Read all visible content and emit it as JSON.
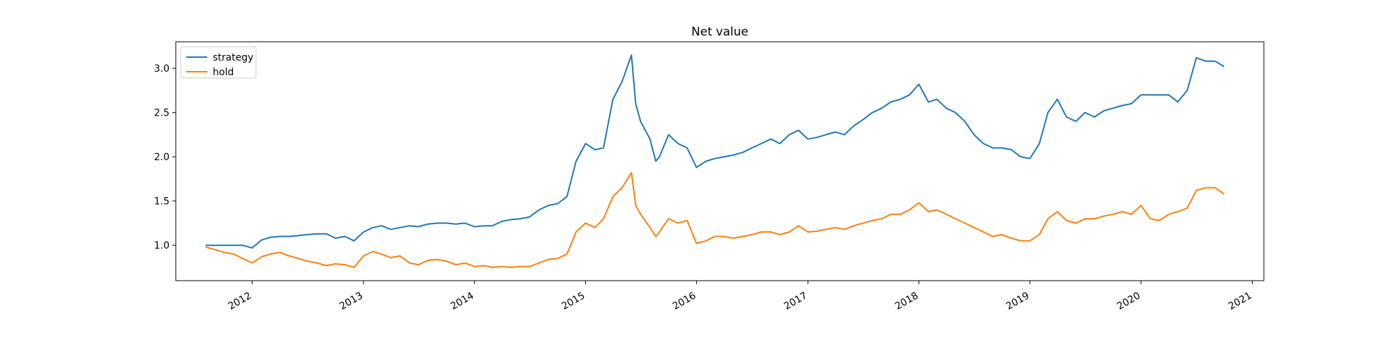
{
  "chart_data": {
    "type": "line",
    "title": "Net value",
    "xlabel": "",
    "ylabel": "",
    "xlim": [
      "2011-04-25",
      "2021-02-08"
    ],
    "ylim": [
      0.6,
      3.3
    ],
    "x_ticks": [
      "2012",
      "2013",
      "2014",
      "2015",
      "2016",
      "2017",
      "2018",
      "2019",
      "2020",
      "2021"
    ],
    "y_ticks": [
      "1.0",
      "1.5",
      "2.0",
      "2.5",
      "3.0"
    ],
    "legend_placement": "top-left",
    "grid": false,
    "colors": {
      "strategy": "#1f77b4",
      "hold": "#ff7f0e"
    },
    "series": [
      {
        "name": "strategy",
        "x": [
          "2011-08-01",
          "2011-09-01",
          "2011-10-01",
          "2011-11-01",
          "2011-12-01",
          "2012-01-01",
          "2012-02-01",
          "2012-03-01",
          "2012-04-01",
          "2012-05-01",
          "2012-06-01",
          "2012-07-01",
          "2012-08-01",
          "2012-09-01",
          "2012-10-01",
          "2012-11-01",
          "2012-12-01",
          "2013-01-01",
          "2013-02-01",
          "2013-03-01",
          "2013-04-01",
          "2013-05-01",
          "2013-06-01",
          "2013-07-01",
          "2013-08-01",
          "2013-09-01",
          "2013-10-01",
          "2013-11-01",
          "2013-12-01",
          "2014-01-01",
          "2014-02-01",
          "2014-03-01",
          "2014-04-01",
          "2014-05-01",
          "2014-06-01",
          "2014-07-01",
          "2014-08-01",
          "2014-09-01",
          "2014-10-01",
          "2014-11-01",
          "2014-12-01",
          "2015-01-01",
          "2015-02-01",
          "2015-03-01",
          "2015-04-01",
          "2015-05-01",
          "2015-06-01",
          "2015-06-15",
          "2015-07-01",
          "2015-08-01",
          "2015-08-20",
          "2015-09-01",
          "2015-10-01",
          "2015-11-01",
          "2015-12-01",
          "2016-01-01",
          "2016-02-01",
          "2016-03-01",
          "2016-04-01",
          "2016-05-01",
          "2016-06-01",
          "2016-07-01",
          "2016-08-01",
          "2016-09-01",
          "2016-10-01",
          "2016-11-01",
          "2016-12-01",
          "2017-01-01",
          "2017-02-01",
          "2017-03-01",
          "2017-04-01",
          "2017-05-01",
          "2017-06-01",
          "2017-07-01",
          "2017-08-01",
          "2017-09-01",
          "2017-10-01",
          "2017-11-01",
          "2017-12-01",
          "2018-01-01",
          "2018-02-01",
          "2018-03-01",
          "2018-04-01",
          "2018-05-01",
          "2018-06-01",
          "2018-07-01",
          "2018-08-01",
          "2018-09-01",
          "2018-10-01",
          "2018-11-01",
          "2018-12-01",
          "2019-01-01",
          "2019-02-01",
          "2019-03-01",
          "2019-04-01",
          "2019-05-01",
          "2019-06-01",
          "2019-07-01",
          "2019-08-01",
          "2019-09-01",
          "2019-10-01",
          "2019-11-01",
          "2019-12-01",
          "2020-01-01",
          "2020-02-01",
          "2020-03-01",
          "2020-04-01",
          "2020-05-01",
          "2020-06-01",
          "2020-07-01",
          "2020-08-01",
          "2020-09-01",
          "2020-09-30"
        ],
        "values": [
          1.0,
          1.0,
          1.0,
          1.0,
          1.0,
          0.97,
          1.06,
          1.09,
          1.1,
          1.1,
          1.11,
          1.12,
          1.13,
          1.13,
          1.08,
          1.1,
          1.05,
          1.15,
          1.2,
          1.22,
          1.18,
          1.2,
          1.22,
          1.21,
          1.24,
          1.25,
          1.25,
          1.24,
          1.25,
          1.21,
          1.22,
          1.22,
          1.27,
          1.29,
          1.3,
          1.32,
          1.4,
          1.45,
          1.47,
          1.55,
          1.95,
          2.15,
          2.08,
          2.1,
          2.65,
          2.85,
          3.15,
          2.6,
          2.4,
          2.2,
          1.95,
          2.0,
          2.25,
          2.15,
          2.1,
          1.88,
          1.95,
          1.98,
          2.0,
          2.02,
          2.05,
          2.1,
          2.15,
          2.2,
          2.15,
          2.25,
          2.3,
          2.2,
          2.22,
          2.25,
          2.28,
          2.25,
          2.35,
          2.42,
          2.5,
          2.55,
          2.62,
          2.65,
          2.7,
          2.82,
          2.62,
          2.65,
          2.55,
          2.5,
          2.4,
          2.25,
          2.15,
          2.1,
          2.1,
          2.08,
          2.0,
          1.98,
          2.15,
          2.5,
          2.65,
          2.45,
          2.4,
          2.5,
          2.45,
          2.52,
          2.55,
          2.58,
          2.6,
          2.7,
          2.7,
          2.7,
          2.7,
          2.62,
          2.75,
          3.12,
          3.08,
          3.08,
          3.02
        ]
      },
      {
        "name": "hold",
        "x": [
          "2011-08-01",
          "2011-09-01",
          "2011-10-01",
          "2011-11-01",
          "2011-12-01",
          "2012-01-01",
          "2012-02-01",
          "2012-03-01",
          "2012-04-01",
          "2012-05-01",
          "2012-06-01",
          "2012-07-01",
          "2012-08-01",
          "2012-09-01",
          "2012-10-01",
          "2012-11-01",
          "2012-12-01",
          "2013-01-01",
          "2013-02-01",
          "2013-03-01",
          "2013-04-01",
          "2013-05-01",
          "2013-06-01",
          "2013-07-01",
          "2013-08-01",
          "2013-09-01",
          "2013-10-01",
          "2013-11-01",
          "2013-12-01",
          "2014-01-01",
          "2014-02-01",
          "2014-03-01",
          "2014-04-01",
          "2014-05-01",
          "2014-06-01",
          "2014-07-01",
          "2014-08-01",
          "2014-09-01",
          "2014-10-01",
          "2014-11-01",
          "2014-12-01",
          "2015-01-01",
          "2015-02-01",
          "2015-03-01",
          "2015-04-01",
          "2015-05-01",
          "2015-06-01",
          "2015-06-15",
          "2015-07-01",
          "2015-08-01",
          "2015-08-20",
          "2015-09-01",
          "2015-10-01",
          "2015-11-01",
          "2015-12-01",
          "2016-01-01",
          "2016-02-01",
          "2016-03-01",
          "2016-04-01",
          "2016-05-01",
          "2016-06-01",
          "2016-07-01",
          "2016-08-01",
          "2016-09-01",
          "2016-10-01",
          "2016-11-01",
          "2016-12-01",
          "2017-01-01",
          "2017-02-01",
          "2017-03-01",
          "2017-04-01",
          "2017-05-01",
          "2017-06-01",
          "2017-07-01",
          "2017-08-01",
          "2017-09-01",
          "2017-10-01",
          "2017-11-01",
          "2017-12-01",
          "2018-01-01",
          "2018-02-01",
          "2018-03-01",
          "2018-04-01",
          "2018-05-01",
          "2018-06-01",
          "2018-07-01",
          "2018-08-01",
          "2018-09-01",
          "2018-10-01",
          "2018-11-01",
          "2018-12-01",
          "2019-01-01",
          "2019-02-01",
          "2019-03-01",
          "2019-04-01",
          "2019-05-01",
          "2019-06-01",
          "2019-07-01",
          "2019-08-01",
          "2019-09-01",
          "2019-10-01",
          "2019-11-01",
          "2019-12-01",
          "2020-01-01",
          "2020-02-01",
          "2020-03-01",
          "2020-04-01",
          "2020-05-01",
          "2020-06-01",
          "2020-07-01",
          "2020-08-01",
          "2020-09-01",
          "2020-09-30"
        ],
        "values": [
          0.98,
          0.95,
          0.92,
          0.9,
          0.85,
          0.8,
          0.87,
          0.9,
          0.92,
          0.88,
          0.85,
          0.82,
          0.8,
          0.77,
          0.79,
          0.78,
          0.75,
          0.88,
          0.93,
          0.9,
          0.86,
          0.88,
          0.8,
          0.78,
          0.83,
          0.84,
          0.82,
          0.78,
          0.8,
          0.76,
          0.77,
          0.75,
          0.76,
          0.75,
          0.76,
          0.76,
          0.8,
          0.84,
          0.85,
          0.9,
          1.15,
          1.25,
          1.2,
          1.3,
          1.55,
          1.65,
          1.82,
          1.45,
          1.35,
          1.2,
          1.1,
          1.15,
          1.3,
          1.25,
          1.28,
          1.02,
          1.05,
          1.1,
          1.1,
          1.08,
          1.1,
          1.12,
          1.15,
          1.15,
          1.12,
          1.15,
          1.22,
          1.15,
          1.16,
          1.18,
          1.2,
          1.18,
          1.22,
          1.25,
          1.28,
          1.3,
          1.35,
          1.35,
          1.4,
          1.48,
          1.38,
          1.4,
          1.35,
          1.3,
          1.25,
          1.2,
          1.15,
          1.1,
          1.12,
          1.08,
          1.05,
          1.05,
          1.12,
          1.3,
          1.38,
          1.28,
          1.25,
          1.3,
          1.3,
          1.33,
          1.35,
          1.38,
          1.35,
          1.45,
          1.3,
          1.28,
          1.35,
          1.38,
          1.42,
          1.62,
          1.65,
          1.65,
          1.58
        ]
      }
    ]
  }
}
